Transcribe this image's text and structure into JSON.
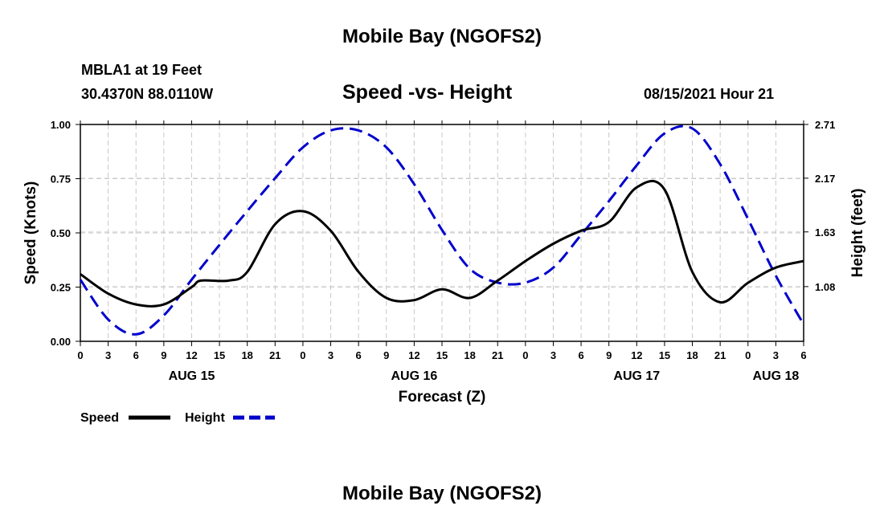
{
  "header": {
    "title": "Mobile Bay (NGOFS2)",
    "station": "MBLA1 at 19 Feet",
    "coords": "30.4370N  88.0110W",
    "date": "08/15/2021 Hour 21",
    "footer_title": "Mobile Bay (NGOFS2)"
  },
  "chart_data": {
    "type": "line",
    "title": "Speed -vs- Height",
    "xlabel": "Forecast (Z)",
    "ylabel": "Speed (Knots)",
    "y2label": "Height (feet)",
    "x_unit": "hours from 2021-08-15 00Z",
    "xlim": [
      0,
      78
    ],
    "x_ticks": [
      0,
      3,
      6,
      9,
      12,
      15,
      18,
      21,
      24,
      27,
      30,
      33,
      36,
      39,
      42,
      45,
      48,
      51,
      54,
      57,
      60,
      63,
      66,
      69,
      72,
      75,
      78
    ],
    "x_tick_labels": [
      "0",
      "3",
      "6",
      "9",
      "12",
      "15",
      "18",
      "21",
      "0",
      "3",
      "6",
      "9",
      "12",
      "15",
      "18",
      "21",
      "0",
      "3",
      "6",
      "9",
      "12",
      "15",
      "18",
      "21",
      "0",
      "3",
      "6"
    ],
    "day_labels": [
      {
        "label": "AUG 15",
        "hour": 12
      },
      {
        "label": "AUG 16",
        "hour": 36
      },
      {
        "label": "AUG 17",
        "hour": 60
      },
      {
        "label": "AUG 18",
        "hour": 75
      }
    ],
    "ylim": [
      0,
      1
    ],
    "y_ticks": [
      0,
      0.25,
      0.5,
      0.75,
      1.0
    ],
    "y_tick_labels": [
      "0.00",
      "0.25",
      "0.50",
      "0.75",
      "1.00"
    ],
    "y2lim": [
      0.53,
      2.71
    ],
    "y2_ticks": [
      1.08,
      1.63,
      2.17,
      2.71
    ],
    "y2_tick_labels": [
      "1.08",
      "1.63",
      "2.17",
      "2.71"
    ],
    "grid": true,
    "legend": "bottom-left",
    "series": [
      {
        "name": "Speed",
        "axis": "left",
        "color": "#000000",
        "style": "solid",
        "x": [
          0,
          3,
          6,
          9,
          12,
          13,
          16,
          18,
          21,
          24,
          27,
          30,
          33,
          36,
          39,
          42,
          45,
          48,
          51,
          54,
          57,
          60,
          63,
          66,
          69,
          72,
          75,
          78
        ],
        "y": [
          0.31,
          0.22,
          0.17,
          0.17,
          0.25,
          0.28,
          0.28,
          0.32,
          0.54,
          0.6,
          0.51,
          0.32,
          0.2,
          0.19,
          0.24,
          0.2,
          0.28,
          0.37,
          0.45,
          0.51,
          0.55,
          0.71,
          0.7,
          0.32,
          0.18,
          0.27,
          0.34,
          0.37
        ]
      },
      {
        "name": "Height",
        "axis": "right",
        "color": "#0000CC",
        "style": "dashed",
        "x": [
          0,
          3,
          6,
          9,
          12,
          15,
          18,
          21,
          24,
          27,
          30,
          33,
          36,
          39,
          42,
          45,
          48,
          51,
          54,
          57,
          60,
          63,
          66,
          69,
          72,
          75,
          78
        ],
        "y": [
          1.15,
          0.75,
          0.6,
          0.79,
          1.15,
          1.5,
          1.84,
          2.17,
          2.48,
          2.65,
          2.65,
          2.48,
          2.11,
          1.65,
          1.26,
          1.12,
          1.12,
          1.27,
          1.6,
          1.94,
          2.3,
          2.62,
          2.67,
          2.31,
          1.76,
          1.19,
          0.7
        ]
      }
    ]
  }
}
